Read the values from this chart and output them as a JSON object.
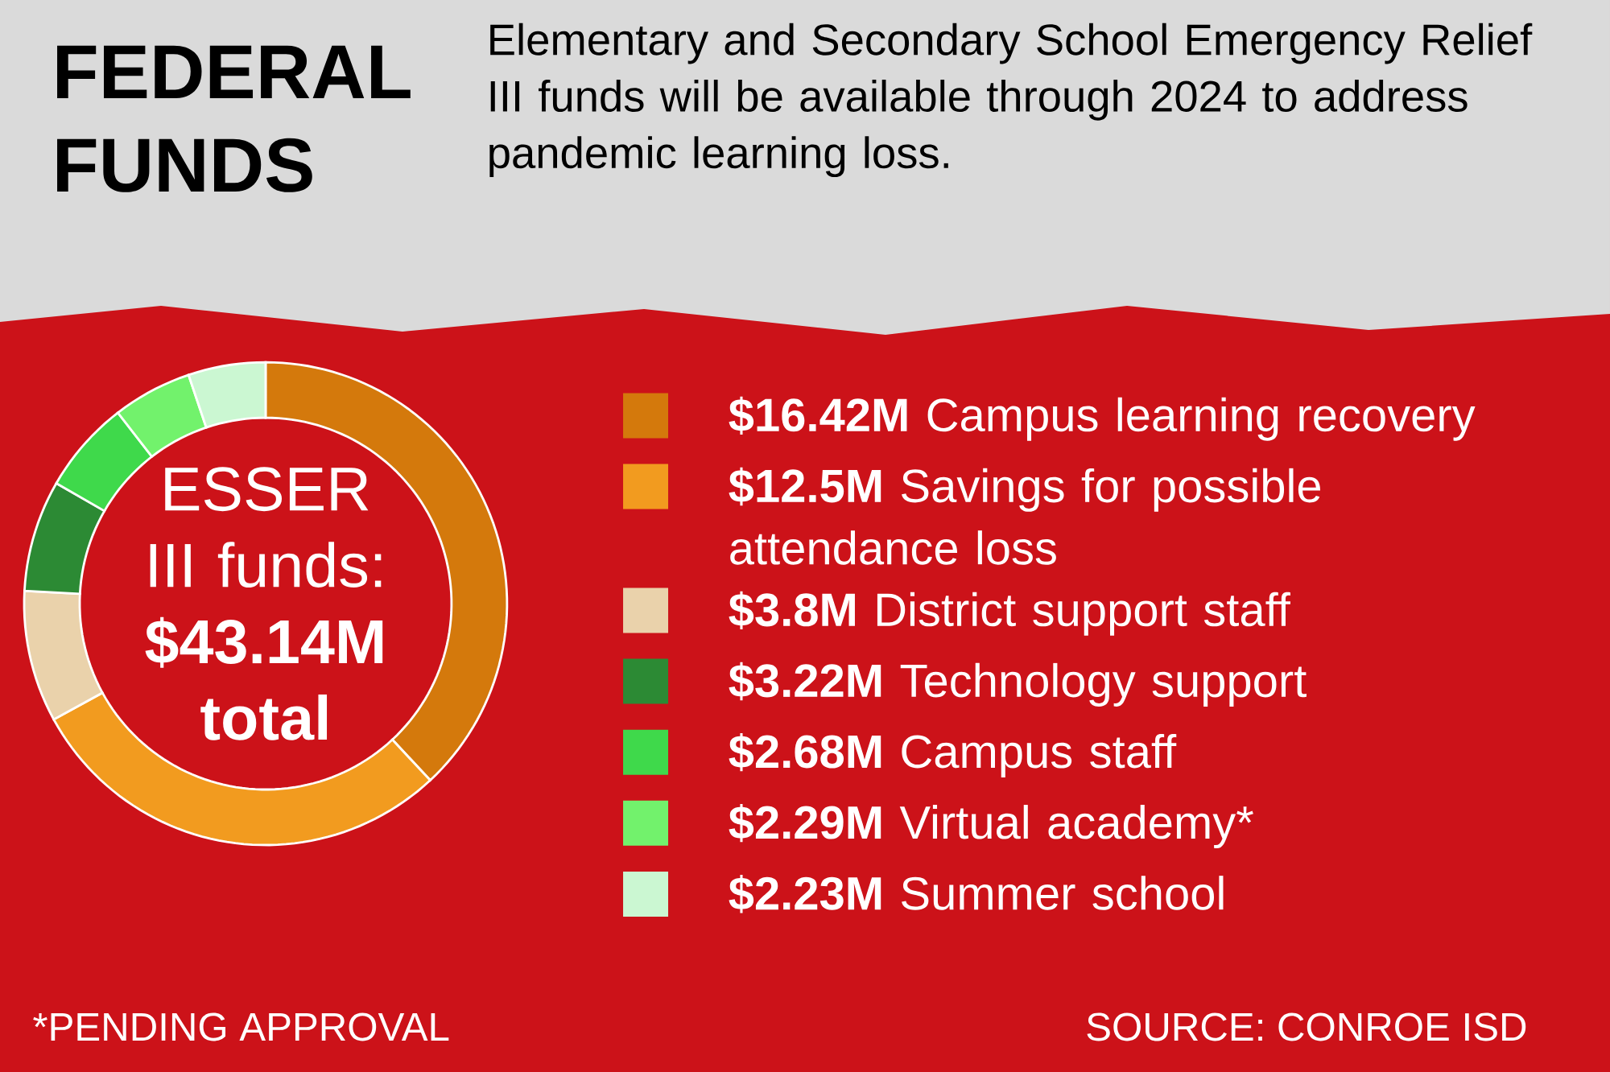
{
  "chart_data": {
    "type": "donut",
    "title": "FEDERAL FUNDS",
    "subtitle": "Elementary and Secondary School Emergency Relief III funds will be available through 2024 to address pandemic learning loss.",
    "categories": [
      "**$16.42M** Campus learning recovery",
      "**$12.5M** Savings for possible attendance loss",
      "**$3.8M** District support staff",
      "**$3.22M** Technology support",
      "**$2.68M** Campus staff",
      "**$2.29M** Virtual academy*",
      "**$2.23M** Summer school"
    ],
    "values": [
      16.42,
      12.5,
      3.8,
      3.22,
      2.68,
      2.29,
      2.23
    ],
    "colors": [
      "#d4790c",
      "#f29b1f",
      "#ead2ab",
      "#2c8a34",
      "#3fd94b",
      "#72f26c",
      "#cbf7d2"
    ],
    "legend": "right",
    "annotations": [
      "ESSER III funds: **$43.14M total**",
      "*PENDING APPROVAL",
      "SOURCE: CONROE ISD"
    ]
  }
}
